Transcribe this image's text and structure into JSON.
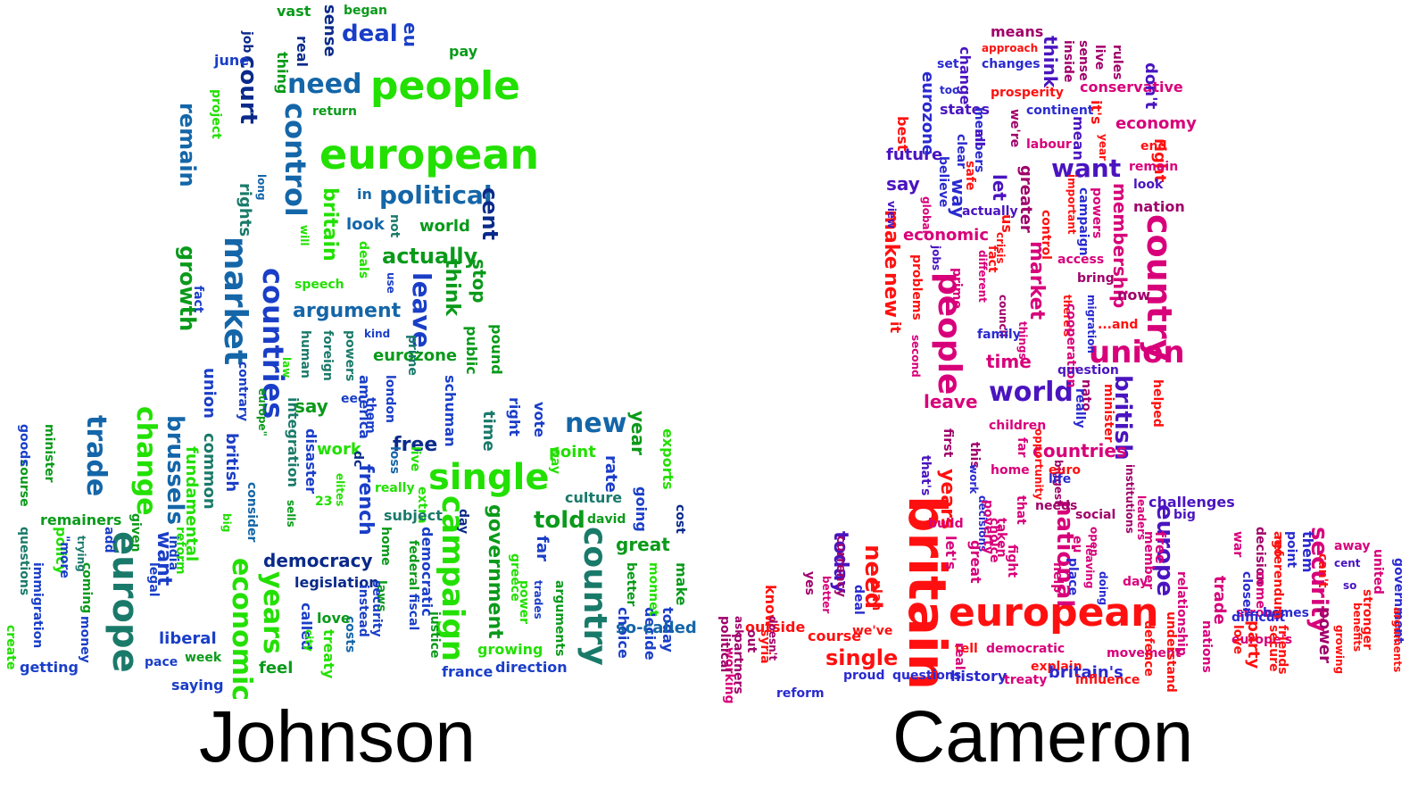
{
  "captions": {
    "left": "Johnson",
    "right": "Cameron"
  },
  "colors": {
    "johnson": [
      "#22e000",
      "#0a9a1a",
      "#1a7a6a",
      "#1466a8",
      "#1a3ec8",
      "#0a2a8a"
    ],
    "cameron": [
      "#ff1010",
      "#d8007a",
      "#a0006a",
      "#7a10b0",
      "#4a14c0",
      "#2a2ad0"
    ]
  },
  "johnson_words": [
    "european",
    "people",
    "country",
    "single",
    "europe",
    "market",
    "countries",
    "control",
    "campaign",
    "economic",
    "trade",
    "years",
    "change",
    "new",
    "need",
    "political",
    "leave",
    "brussels",
    "told",
    "growth",
    "remain",
    "argument",
    "actually",
    "cent",
    "deal",
    "court",
    "britain",
    "french",
    "great",
    "want",
    "democracy",
    "government",
    "free",
    "point",
    "rate",
    "year",
    "legislation",
    "liberal",
    "world",
    "look",
    "think",
    "stop",
    "say",
    "work",
    "eurozone",
    "union",
    "common",
    "fundamental",
    "british",
    "rights",
    "contrary",
    "consider",
    "integration",
    "disaster",
    "america",
    "london",
    "schuman",
    "prime",
    "public",
    "pound",
    "time",
    "right",
    "vote",
    "going",
    "exports",
    "cost",
    "make",
    "today",
    "decide",
    "choice",
    "monnet",
    "better",
    "so-called",
    "direction",
    "france",
    "justice",
    "fiscal",
    "federal",
    "extra",
    "democratic",
    "laws",
    "security",
    "instead",
    "costs",
    "love",
    "called",
    "city",
    "feel",
    "treaty",
    "india",
    "reform",
    "legal",
    "week",
    "pace",
    "saying",
    "money",
    "coming",
    "trying",
    "policy",
    "\"more",
    "immigration",
    "getting",
    "create",
    "questions",
    "course",
    "goods",
    "minister",
    "add",
    "given",
    "remainers",
    "vast",
    "began",
    "sense",
    "real",
    "eu",
    "job",
    "thing",
    "june",
    "pay",
    "return",
    "project",
    "long",
    "will",
    "in",
    "not",
    "deals",
    "speech",
    "human",
    "foreign",
    "powers",
    "kind",
    "use",
    "law",
    "europe\"",
    "eec",
    "them",
    "23",
    "elites",
    "sells",
    "big",
    "really",
    "loss",
    "live",
    "home",
    "subject",
    "culture",
    "david",
    "far",
    "way",
    "day",
    "arguments",
    "trades",
    "power",
    "greece",
    "growing",
    "fact",
    "dc"
  ],
  "cameron_words": [
    "britain",
    "european",
    "union",
    "country",
    "people",
    "world",
    "british",
    "europe",
    "want",
    "security",
    "single",
    "national",
    "today",
    "market",
    "time",
    "leave",
    "countries",
    "economic",
    "membership",
    "economy",
    "conservative",
    "future",
    "years",
    "make",
    "say",
    "new",
    "need",
    "outside",
    "know",
    "course",
    "we've",
    "deal",
    "plan",
    "proud",
    "questions",
    "history",
    "treaty",
    "explain",
    "britain's",
    "influence",
    "tell",
    "democratic",
    "movement",
    "real",
    "great",
    "let's",
    "choice",
    "fight",
    "help",
    "place",
    "leaving",
    "doing",
    "day",
    "free",
    "member",
    "europe's",
    "relationship",
    "nations",
    "trade",
    "war",
    "love",
    "party",
    "secure",
    "strong",
    "homes",
    "difficult",
    "decision",
    "referendum",
    "point",
    "them",
    "friends",
    "away",
    "cent",
    "so",
    "stronger",
    "power",
    "benefits",
    "growing",
    "united",
    "government",
    "arguments",
    "can't",
    "means",
    "approach",
    "changes",
    "think",
    "inside",
    "sense",
    "live",
    "rules",
    "set",
    "change",
    "too",
    "prosperity",
    "don't",
    "states",
    "continent",
    "members",
    "we're",
    "mean",
    "it's",
    "best",
    "eurozone",
    "all",
    "clear",
    "labour",
    "year",
    "end",
    "right",
    "remain",
    "safe",
    "believe",
    "way",
    "let",
    "greater",
    "look",
    "nation",
    "view",
    "global",
    "actually",
    "us",
    "important",
    "campaign",
    "powers",
    "jobs",
    "different",
    "crisis",
    "control",
    "access",
    "bring",
    "problems",
    "prime",
    "fact",
    "council",
    "there's",
    "cooperation",
    "migration",
    "now",
    "...and",
    "second",
    "family",
    "things",
    "question",
    "nato",
    "really",
    "minister",
    "helped",
    "children",
    "far",
    "opportunity",
    "biggest",
    "life",
    "first",
    "this",
    "work",
    "euro",
    "institutions",
    "that's",
    "home",
    "decisions",
    "that",
    "needs",
    "social",
    "poverty",
    "eu",
    "leaders",
    "challenges",
    "big",
    "build",
    "taken",
    "open",
    "yes",
    "better",
    "currency",
    "doesn't",
    "syria",
    "reform",
    "ask",
    "out",
    "partners",
    "working",
    "political",
    "defence",
    "understand",
    "closer",
    "come",
    "ago",
    "it"
  ]
}
